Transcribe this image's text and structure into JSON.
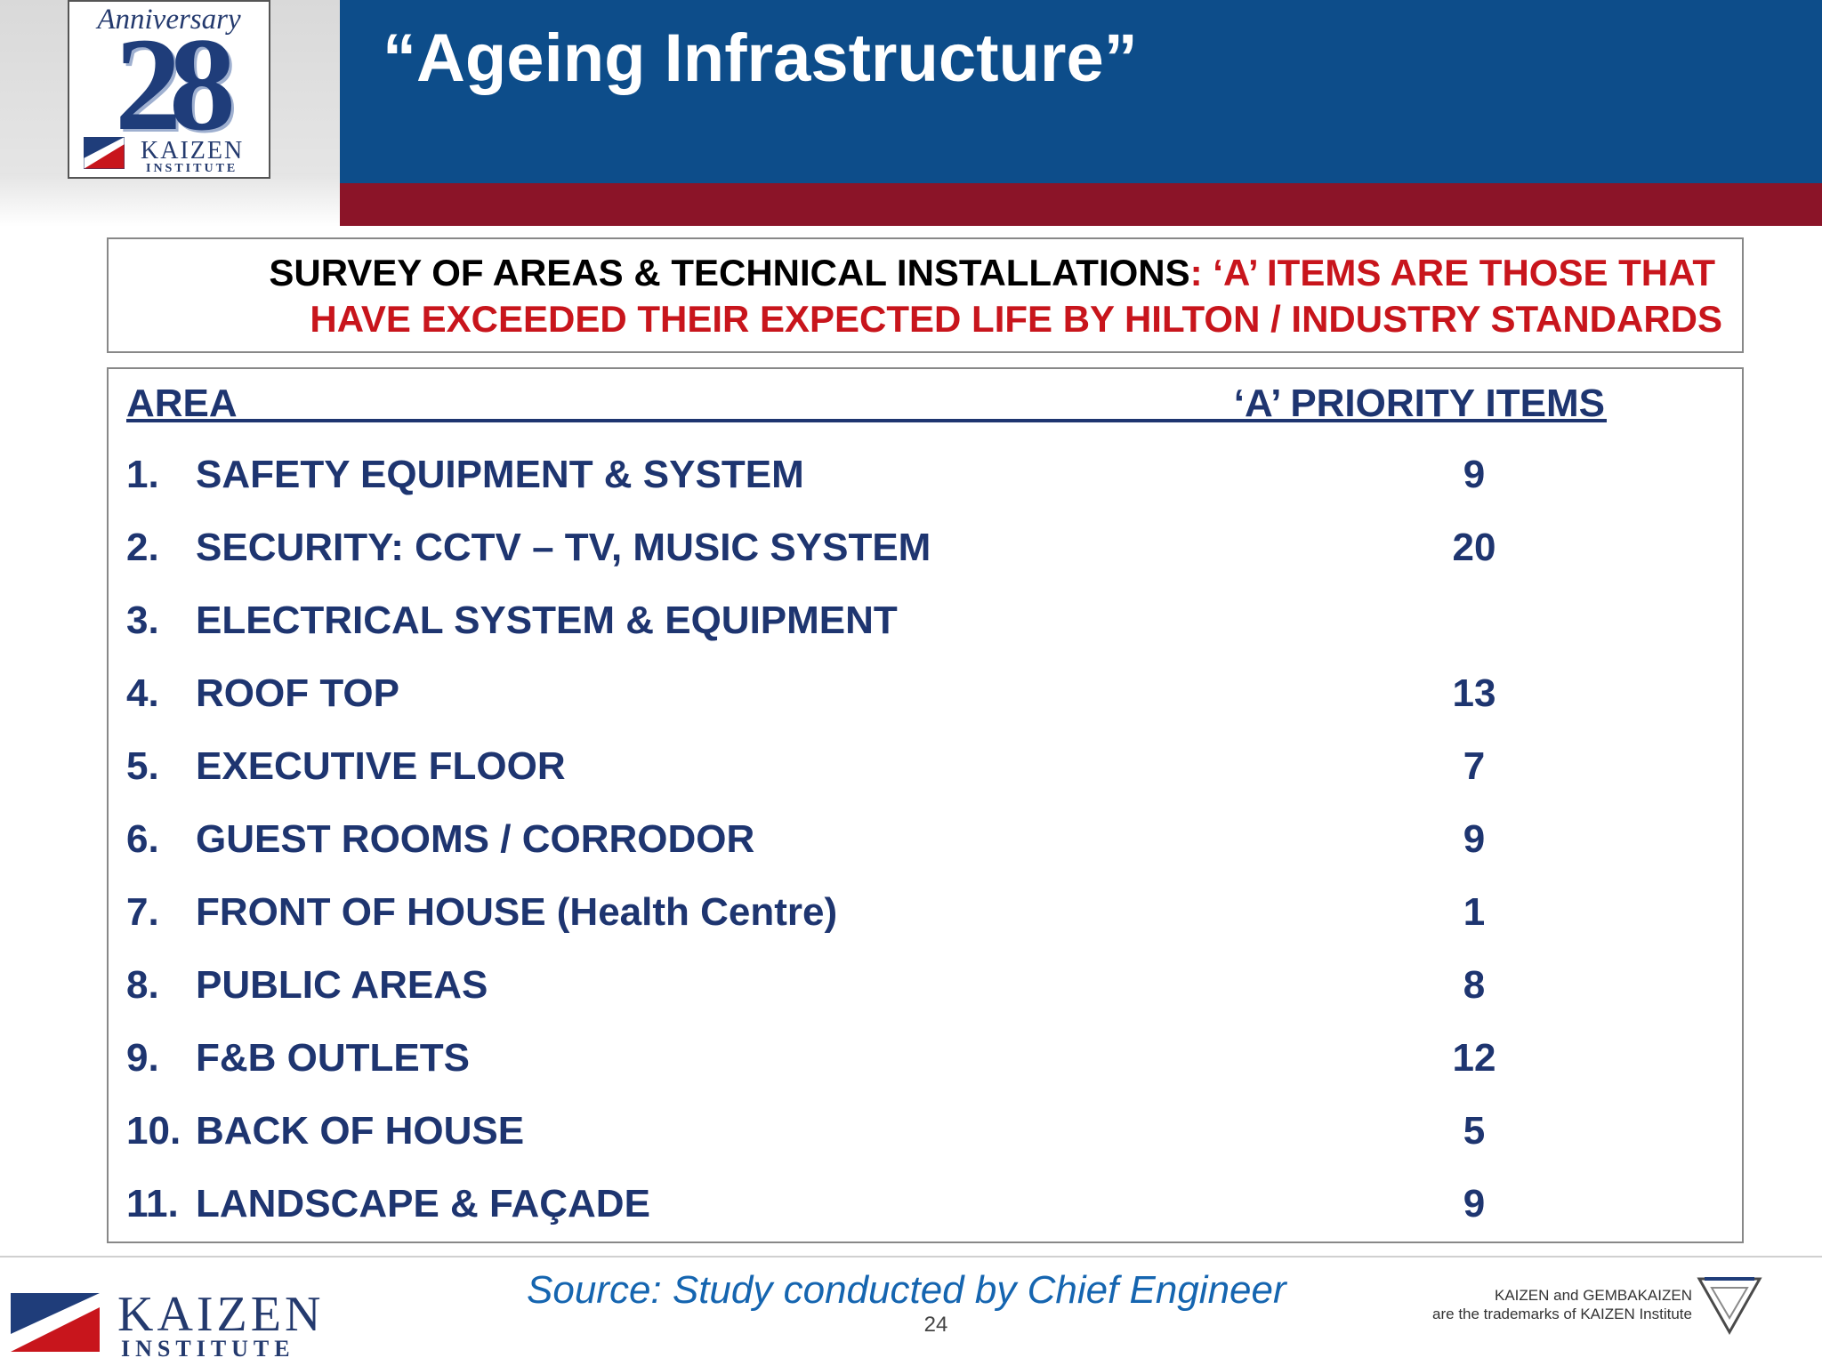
{
  "header": {
    "title": "“Ageing Infrastructure”",
    "colors": {
      "title_bar": "#0d4d8a",
      "accent_bar": "#8b1428",
      "text_navy": "#1e3570",
      "text_red": "#c8151c"
    }
  },
  "logo": {
    "anniversary_text": "Anniversary",
    "number": "28",
    "brand": "KAIZEN",
    "brand_sub": "INSTITUTE"
  },
  "survey": {
    "lead": "SURVEY OF AREAS & TECHNICAL INSTALLATIONS",
    "highlight1": ": ‘A’ ITEMS ARE THOSE THAT",
    "highlight2": "HAVE EXCEEDED THEIR EXPECTED LIFE BY HILTON / INDUSTRY STANDARDS"
  },
  "table": {
    "col_area": "AREA",
    "col_priority": "‘A’ PRIORITY ITEMS",
    "rows": [
      {
        "num": "1.",
        "label": "SAFETY EQUIPMENT & SYSTEM",
        "count": "9"
      },
      {
        "num": "2.",
        "label": "SECURITY: CCTV – TV, MUSIC SYSTEM",
        "count": "20"
      },
      {
        "num": "3.",
        "label": "ELECTRICAL SYSTEM & EQUIPMENT",
        "count": ""
      },
      {
        "num": "4.",
        "label": "ROOF TOP",
        "count": "13"
      },
      {
        "num": "5.",
        "label": "EXECUTIVE FLOOR",
        "count": "7"
      },
      {
        "num": "6.",
        "label": "GUEST ROOMS / CORRODOR",
        "count": "9"
      },
      {
        "num": "7.",
        "label": "FRONT OF HOUSE (Health Centre)",
        "count": "1"
      },
      {
        "num": "8.",
        "label": "PUBLIC AREAS",
        "count": "8"
      },
      {
        "num": "9.",
        "label": "F&B OUTLETS",
        "count": "12"
      },
      {
        "num": "10.",
        "label": "BACK OF HOUSE",
        "count": "5"
      },
      {
        "num": "11.",
        "label": "LANDSCAPE & FAÇADE",
        "count": "9"
      }
    ]
  },
  "footer": {
    "source": "Source: Study conducted by Chief Engineer",
    "page": "24",
    "trademark_line1": "KAIZEN and GEMBAKAIZEN",
    "trademark_line2": "are the trademarks of KAIZEN Institute",
    "brand": "KAIZEN",
    "brand_sub": "INSTITUTE"
  }
}
